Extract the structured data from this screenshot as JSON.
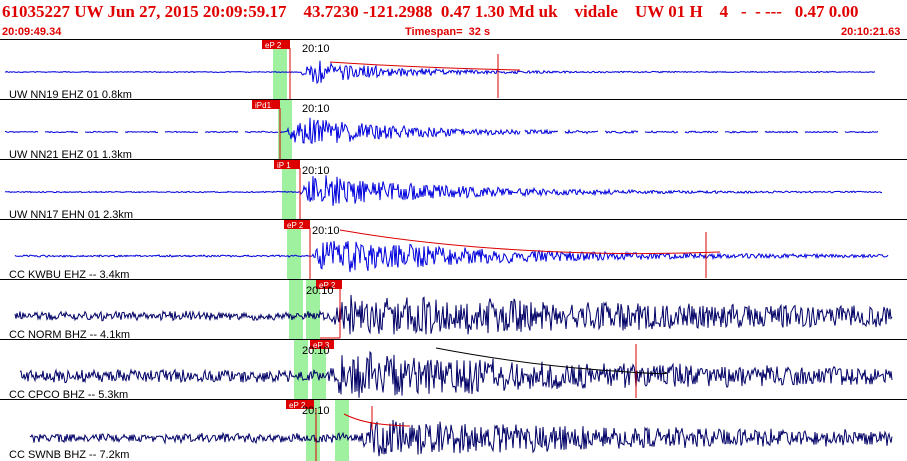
{
  "header": {
    "title": "61035227 UW Jun 27, 2015 20:09:59.17    43.7230 -121.2988  0.47 1.30 Md uk    vidale    UW 01 H    4   -  - ---   0.47 0.00",
    "start_time": "20:09:49.34",
    "timespan": "Timespan=  32 s",
    "end_time": "20:10:21.63"
  },
  "colors": {
    "header_text": "#e00000",
    "trace_near": "#0000dd",
    "trace_far": "#000066",
    "pick_box": "#dd0000",
    "window_band": "#9ff09f"
  },
  "tracks": [
    {
      "label": "UW NN19 EHZ 01 0.8km",
      "pick": "eP 2",
      "time_mark": "20:10",
      "color": "blue"
    },
    {
      "label": "UW NN21 EHZ 01 1.3km",
      "pick": "iPd1",
      "time_mark": "20:10",
      "color": "blue"
    },
    {
      "label": "UW NN17 EHN 01 2.3km",
      "pick": "iP 1",
      "time_mark": "20:10",
      "color": "blue"
    },
    {
      "label": "CC KWBU EHZ -- 3.4km",
      "pick": "eP 2",
      "time_mark": "20:10",
      "color": "blue"
    },
    {
      "label": "CC NORM BHZ -- 4.1km",
      "pick": "eP 2",
      "time_mark": "20:10",
      "color": "navy"
    },
    {
      "label": "CC CPCO BHZ -- 5.3km",
      "pick": "eP 3",
      "time_mark": "20:10",
      "color": "navy"
    },
    {
      "label": "CC SWNB BHZ -- 7.2km",
      "pick": "eP 2",
      "time_mark": "20:10",
      "color": "navy"
    }
  ]
}
